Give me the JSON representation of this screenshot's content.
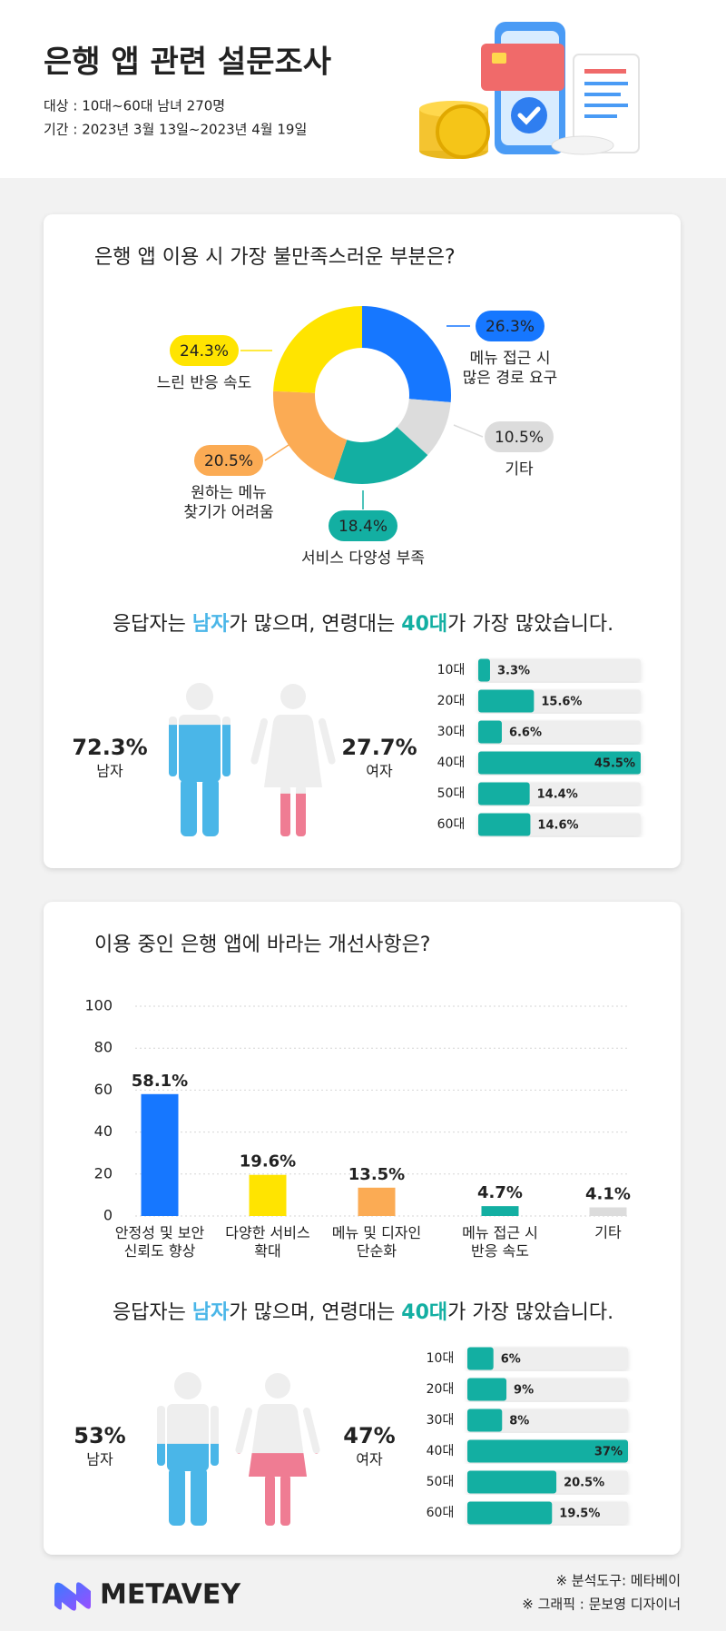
{
  "header": {
    "title": "은행 앱 관련 설문조사",
    "lines": [
      "대상 : 10대~60대 남녀 270명",
      "기간 : 2023년 3월 13일~2023년 4월 19일"
    ]
  },
  "chart_data": [
    {
      "type": "pie",
      "title": "은행 앱 이용 시 가장 불만족스러운 부분은?",
      "categories": [
        "메뉴 접근 시\n많은 경로 요구",
        "기타",
        "서비스 다양성 부족",
        "원하는 메뉴\n찾기가 어려움",
        "느린 반응 속도"
      ],
      "values": [
        26.3,
        10.5,
        18.4,
        20.5,
        24.3
      ],
      "value_labels": [
        "26.3%",
        "10.5%",
        "18.4%",
        "20.5%",
        "24.3%"
      ],
      "colors": [
        "#1677ff",
        "#dcdcdc",
        "#13afa2",
        "#fbab54",
        "#ffe400"
      ]
    },
    {
      "type": "pictogram",
      "title_parts": [
        "응답자는 ",
        "남자",
        "가 많으며, 연령대는 ",
        "40대",
        "가 가장 많았습니다."
      ],
      "categories": [
        "남자",
        "여자"
      ],
      "values": [
        72.3,
        27.7
      ],
      "value_labels": [
        "72.3%",
        "27.7%"
      ],
      "colors": [
        "#4ab6e8",
        "#ef7c93"
      ],
      "ylim": [
        0,
        100
      ]
    },
    {
      "type": "hbar",
      "categories": [
        "10대",
        "20대",
        "30대",
        "40대",
        "50대",
        "60대"
      ],
      "values": [
        3.3,
        15.6,
        6.6,
        45.5,
        14.4,
        14.6
      ],
      "value_labels": [
        "3.3%",
        "15.6%",
        "6.6%",
        "45.5%",
        "14.4%",
        "14.6%"
      ],
      "color": "#13afa2",
      "xlim": [
        0,
        45.5
      ]
    },
    {
      "type": "bar",
      "title": "이용 중인 은행 앱에 바라는 개선사항은?",
      "categories": [
        "안정성 및 보안\n신뢰도 향상",
        "다양한 서비스\n확대",
        "메뉴 및 디자인\n단순화",
        "메뉴 접근 시\n반응 속도",
        "기타"
      ],
      "values": [
        58.1,
        19.6,
        13.5,
        4.7,
        4.1
      ],
      "value_labels": [
        "58.1%",
        "19.6%",
        "13.5%",
        "4.7%",
        "4.1%"
      ],
      "colors": [
        "#1677ff",
        "#ffe400",
        "#fbab54",
        "#13afa2",
        "#dcdcdc"
      ],
      "ylim": [
        0,
        100
      ],
      "yticks": [
        0,
        20,
        40,
        60,
        80,
        100
      ],
      "grid": true
    },
    {
      "type": "pictogram",
      "title_parts": [
        "응답자는 ",
        "남자",
        "가 많으며, 연령대는 ",
        "40대",
        "가 가장 많았습니다."
      ],
      "categories": [
        "남자",
        "여자"
      ],
      "values": [
        53,
        47
      ],
      "value_labels": [
        "53%",
        "47%"
      ],
      "colors": [
        "#4ab6e8",
        "#ef7c93"
      ],
      "ylim": [
        0,
        100
      ]
    },
    {
      "type": "hbar",
      "categories": [
        "10대",
        "20대",
        "30대",
        "40대",
        "50대",
        "60대"
      ],
      "values": [
        6,
        9,
        8,
        37,
        20.5,
        19.5
      ],
      "value_labels": [
        "6%",
        "9%",
        "8%",
        "37%",
        "20.5%",
        "19.5%"
      ],
      "color": "#13afa2",
      "xlim": [
        0,
        37
      ]
    }
  ],
  "footer": {
    "logo": "METAVEY",
    "notes": [
      "※ 분석도구: 메타베이",
      "※ 그래픽 : 문보영 디자이너"
    ]
  }
}
